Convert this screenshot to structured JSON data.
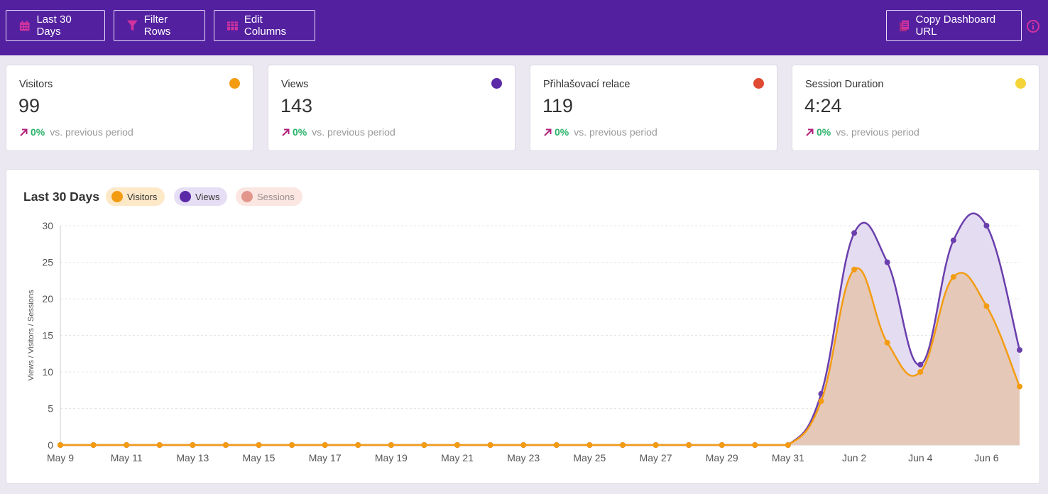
{
  "toolbar": {
    "date_range_label": "Last 30 Days",
    "filter_label": "Filter Rows",
    "edit_columns_label": "Edit Columns",
    "copy_url_label": "Copy Dashboard URL",
    "accent_color": "#5320a0",
    "icon_color": "#d0339e"
  },
  "cards": [
    {
      "label": "Visitors",
      "value": "99",
      "change": "0%",
      "compare": "vs. previous period",
      "color": "#f39c12"
    },
    {
      "label": "Views",
      "value": "143",
      "change": "0%",
      "compare": "vs. previous period",
      "color": "#5b2aa8"
    },
    {
      "label": "Přihlašovací relace",
      "value": "119",
      "change": "0%",
      "compare": "vs. previous period",
      "color": "#e04a32"
    },
    {
      "label": "Session Duration",
      "value": "4:24",
      "change": "0%",
      "compare": "vs. previous period",
      "color": "#f5d43a"
    }
  ],
  "chart_panel": {
    "title": "Last 30 Days",
    "legend": [
      {
        "label": "Visitors",
        "color": "#f39c12",
        "bg": "#fde8c8",
        "active": true
      },
      {
        "label": "Views",
        "color": "#5b2aa8",
        "bg": "#e6def4",
        "active": true
      },
      {
        "label": "Sessions",
        "color": "#e3968c",
        "bg": "#fbe6e2",
        "active": false
      }
    ]
  },
  "chart_data": {
    "type": "line",
    "ylabel": "Views / Visitors / Sessions",
    "ylim": [
      0,
      30
    ],
    "yticks": [
      0,
      5,
      10,
      15,
      20,
      25,
      30
    ],
    "grid": true,
    "x": [
      "May 9",
      "May 10",
      "May 11",
      "May 12",
      "May 13",
      "May 14",
      "May 15",
      "May 16",
      "May 17",
      "May 18",
      "May 19",
      "May 20",
      "May 21",
      "May 22",
      "May 23",
      "May 24",
      "May 25",
      "May 26",
      "May 27",
      "May 28",
      "May 29",
      "May 30",
      "May 31",
      "Jun 1",
      "Jun 2",
      "Jun 3",
      "Jun 4",
      "Jun 5",
      "Jun 6",
      "Jun 7"
    ],
    "xtick_labels": [
      "May 9",
      "May 11",
      "May 13",
      "May 15",
      "May 17",
      "May 19",
      "May 21",
      "May 23",
      "May 25",
      "May 27",
      "May 29",
      "May 31",
      "Jun 2",
      "Jun 4",
      "Jun 6"
    ],
    "series": [
      {
        "name": "Views",
        "color": "#6a3fad",
        "fill": "#e4dcf0",
        "values": [
          0,
          0,
          0,
          0,
          0,
          0,
          0,
          0,
          0,
          0,
          0,
          0,
          0,
          0,
          0,
          0,
          0,
          0,
          0,
          0,
          0,
          0,
          0,
          7,
          29,
          25,
          11,
          28,
          30,
          13
        ]
      },
      {
        "name": "Visitors",
        "color": "#f39c12",
        "fill": "#e6c8b8",
        "values": [
          0,
          0,
          0,
          0,
          0,
          0,
          0,
          0,
          0,
          0,
          0,
          0,
          0,
          0,
          0,
          0,
          0,
          0,
          0,
          0,
          0,
          0,
          0,
          6,
          24,
          14,
          10,
          23,
          19,
          8
        ]
      }
    ]
  }
}
